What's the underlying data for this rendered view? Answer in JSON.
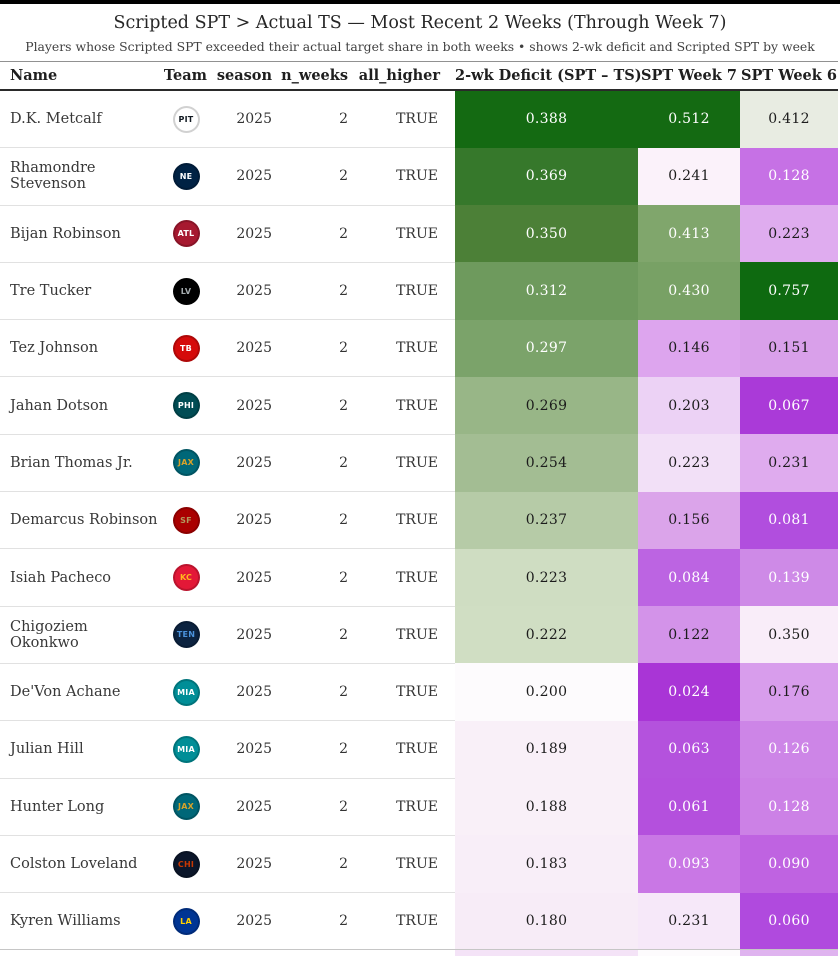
{
  "header": {
    "title": "Scripted SPT > Actual TS — Most Recent 2 Weeks (Through Week 7)",
    "subtitle": "Players whose Scripted SPT exceeded their actual target share in both weeks • shows 2-wk deficit and Scripted SPT by week"
  },
  "columns": [
    "Name",
    "Team",
    "season",
    "n_weeks",
    "all_higher",
    "2-wk Deficit (SPT – TS)",
    "SPT Week 7",
    "SPT Week 6"
  ],
  "rows": [
    {
      "name": "D.K. Metcalf",
      "team": {
        "abbr": "PIT",
        "bg": "#ffffff",
        "fg": "#101820"
      },
      "season": "2025",
      "n_weeks": "2",
      "all_higher": "TRUE",
      "deficit": {
        "v": "0.388",
        "bg": "#146a12",
        "fg": "#ffffff"
      },
      "wk7": {
        "v": "0.512",
        "bg": "#146a12",
        "fg": "#ffffff"
      },
      "wk6": {
        "v": "0.412",
        "bg": "#e8ece2",
        "fg": "#1c1c1c"
      }
    },
    {
      "name": "Rhamondre Stevenson",
      "team": {
        "abbr": "NE",
        "bg": "#002244",
        "fg": "#ffffff"
      },
      "season": "2025",
      "n_weeks": "2",
      "all_higher": "TRUE",
      "deficit": {
        "v": "0.369",
        "bg": "#36782b",
        "fg": "#ffffff"
      },
      "wk7": {
        "v": "0.241",
        "bg": "#fbf2fa",
        "fg": "#1c1c1c"
      },
      "wk6": {
        "v": "0.128",
        "bg": "#c671e5",
        "fg": "#ffffff"
      }
    },
    {
      "name": "Bijan Robinson",
      "team": {
        "abbr": "ATL",
        "bg": "#a71930",
        "fg": "#ffffff"
      },
      "season": "2025",
      "n_weeks": "2",
      "all_higher": "TRUE",
      "deficit": {
        "v": "0.350",
        "bg": "#4c8037",
        "fg": "#ffffff"
      },
      "wk7": {
        "v": "0.413",
        "bg": "#80a66c",
        "fg": "#ffffff"
      },
      "wk6": {
        "v": "0.223",
        "bg": "#dfacef",
        "fg": "#1c1c1c"
      }
    },
    {
      "name": "Tre Tucker",
      "team": {
        "abbr": "LV",
        "bg": "#000000",
        "fg": "#a5acaf"
      },
      "season": "2025",
      "n_weeks": "2",
      "all_higher": "TRUE",
      "deficit": {
        "v": "0.312",
        "bg": "#6e9a5d",
        "fg": "#ffffff"
      },
      "wk7": {
        "v": "0.430",
        "bg": "#78a165",
        "fg": "#ffffff"
      },
      "wk6": {
        "v": "0.757",
        "bg": "#0e6a10",
        "fg": "#ffffff"
      }
    },
    {
      "name": "Tez Johnson",
      "team": {
        "abbr": "TB",
        "bg": "#d50a0a",
        "fg": "#ffffff"
      },
      "season": "2025",
      "n_weeks": "2",
      "all_higher": "TRUE",
      "deficit": {
        "v": "0.297",
        "bg": "#7ba36a",
        "fg": "#ffffff"
      },
      "wk7": {
        "v": "0.146",
        "bg": "#dda5ee",
        "fg": "#1c1c1c"
      },
      "wk6": {
        "v": "0.151",
        "bg": "#d9a0ea",
        "fg": "#1c1c1c"
      }
    },
    {
      "name": "Jahan Dotson",
      "team": {
        "abbr": "PHI",
        "bg": "#004c54",
        "fg": "#ffffff"
      },
      "season": "2025",
      "n_weeks": "2",
      "all_higher": "TRUE",
      "deficit": {
        "v": "0.269",
        "bg": "#98b687",
        "fg": "#1c1c1c"
      },
      "wk7": {
        "v": "0.203",
        "bg": "#ecd2f5",
        "fg": "#1c1c1c"
      },
      "wk6": {
        "v": "0.067",
        "bg": "#aa3ad8",
        "fg": "#ffffff"
      }
    },
    {
      "name": "Brian Thomas Jr.",
      "team": {
        "abbr": "JAX",
        "bg": "#006778",
        "fg": "#d7a22a"
      },
      "season": "2025",
      "n_weeks": "2",
      "all_higher": "TRUE",
      "deficit": {
        "v": "0.254",
        "bg": "#a3bd93",
        "fg": "#1c1c1c"
      },
      "wk7": {
        "v": "0.223",
        "bg": "#f2e0f7",
        "fg": "#1c1c1c"
      },
      "wk6": {
        "v": "0.231",
        "bg": "#dfabee",
        "fg": "#1c1c1c"
      }
    },
    {
      "name": "Demarcus Robinson",
      "team": {
        "abbr": "SF",
        "bg": "#aa0000",
        "fg": "#b3995d"
      },
      "season": "2025",
      "n_weeks": "2",
      "all_higher": "TRUE",
      "deficit": {
        "v": "0.237",
        "bg": "#b6cba7",
        "fg": "#1c1c1c"
      },
      "wk7": {
        "v": "0.156",
        "bg": "#dba4ea",
        "fg": "#1c1c1c"
      },
      "wk6": {
        "v": "0.081",
        "bg": "#b14ede",
        "fg": "#ffffff"
      }
    },
    {
      "name": "Isiah Pacheco",
      "team": {
        "abbr": "KC",
        "bg": "#e31837",
        "fg": "#ffb81c"
      },
      "season": "2025",
      "n_weeks": "2",
      "all_higher": "TRUE",
      "deficit": {
        "v": "0.223",
        "bg": "#cfddc2",
        "fg": "#1c1c1c"
      },
      "wk7": {
        "v": "0.084",
        "bg": "#bc64e2",
        "fg": "#ffffff"
      },
      "wk6": {
        "v": "0.139",
        "bg": "#ce8ae7",
        "fg": "#ffffff"
      }
    },
    {
      "name": "Chigoziem Okonkwo",
      "team": {
        "abbr": "TEN",
        "bg": "#0c2340",
        "fg": "#4b92db"
      },
      "season": "2025",
      "n_weeks": "2",
      "all_higher": "TRUE",
      "deficit": {
        "v": "0.222",
        "bg": "#d0dec3",
        "fg": "#1c1c1c"
      },
      "wk7": {
        "v": "0.122",
        "bg": "#d393e9",
        "fg": "#1c1c1c"
      },
      "wk6": {
        "v": "0.350",
        "bg": "#f9edf9",
        "fg": "#1c1c1c"
      }
    },
    {
      "name": "De'Von Achane",
      "team": {
        "abbr": "MIA",
        "bg": "#008e97",
        "fg": "#ffffff"
      },
      "season": "2025",
      "n_weeks": "2",
      "all_higher": "TRUE",
      "deficit": {
        "v": "0.200",
        "bg": "#fdfbfd",
        "fg": "#1c1c1c"
      },
      "wk7": {
        "v": "0.024",
        "bg": "#a935d6",
        "fg": "#ffffff"
      },
      "wk6": {
        "v": "0.176",
        "bg": "#d89dec",
        "fg": "#1c1c1c"
      }
    },
    {
      "name": "Julian Hill",
      "team": {
        "abbr": "MIA",
        "bg": "#008e97",
        "fg": "#ffffff"
      },
      "season": "2025",
      "n_weeks": "2",
      "all_higher": "TRUE",
      "deficit": {
        "v": "0.189",
        "bg": "#f9f0f8",
        "fg": "#1c1c1c"
      },
      "wk7": {
        "v": "0.063",
        "bg": "#b452dd",
        "fg": "#ffffff"
      },
      "wk6": {
        "v": "0.126",
        "bg": "#cd85e7",
        "fg": "#ffffff"
      }
    },
    {
      "name": "Hunter Long",
      "team": {
        "abbr": "JAX",
        "bg": "#006778",
        "fg": "#d7a22a"
      },
      "season": "2025",
      "n_weeks": "2",
      "all_higher": "TRUE",
      "deficit": {
        "v": "0.188",
        "bg": "#f9f0f8",
        "fg": "#1c1c1c"
      },
      "wk7": {
        "v": "0.061",
        "bg": "#b450dd",
        "fg": "#ffffff"
      },
      "wk6": {
        "v": "0.128",
        "bg": "#cc81e6",
        "fg": "#ffffff"
      }
    },
    {
      "name": "Colston Loveland",
      "team": {
        "abbr": "CHI",
        "bg": "#0b162a",
        "fg": "#c83803"
      },
      "season": "2025",
      "n_weeks": "2",
      "all_higher": "TRUE",
      "deficit": {
        "v": "0.183",
        "bg": "#f8eef8",
        "fg": "#1c1c1c"
      },
      "wk7": {
        "v": "0.093",
        "bg": "#c977e5",
        "fg": "#ffffff"
      },
      "wk6": {
        "v": "0.090",
        "bg": "#bf63e1",
        "fg": "#ffffff"
      }
    },
    {
      "name": "Kyren Williams",
      "team": {
        "abbr": "LA",
        "bg": "#003594",
        "fg": "#ffd100"
      },
      "season": "2025",
      "n_weeks": "2",
      "all_higher": "TRUE",
      "deficit": {
        "v": "0.180",
        "bg": "#f7ecf7",
        "fg": "#1c1c1c"
      },
      "wk7": {
        "v": "0.231",
        "bg": "#f6e8f9",
        "fg": "#1c1c1c"
      },
      "wk6": {
        "v": "0.060",
        "bg": "#b04ade",
        "fg": "#ffffff"
      }
    }
  ],
  "partial_row": {
    "deficit_bg": "#f4e3f7",
    "wk7_bg": "#fdfbfd",
    "wk6_bg": "#dfb3ef"
  },
  "chart_data": {
    "type": "table",
    "title": "Scripted SPT > Actual TS — Most Recent 2 Weeks (Through Week 7)",
    "subtitle": "Players whose Scripted SPT exceeded their actual target share in both weeks • shows 2-wk deficit and Scripted SPT by week",
    "columns": [
      "Name",
      "Team",
      "season",
      "n_weeks",
      "all_higher",
      "2-wk Deficit (SPT – TS)",
      "SPT Week 7",
      "SPT Week 6"
    ],
    "rows": [
      [
        "D.K. Metcalf",
        "PIT",
        2025,
        2,
        true,
        0.388,
        0.512,
        0.412
      ],
      [
        "Rhamondre Stevenson",
        "NE",
        2025,
        2,
        true,
        0.369,
        0.241,
        0.128
      ],
      [
        "Bijan Robinson",
        "ATL",
        2025,
        2,
        true,
        0.35,
        0.413,
        0.223
      ],
      [
        "Tre Tucker",
        "LV",
        2025,
        2,
        true,
        0.312,
        0.43,
        0.757
      ],
      [
        "Tez Johnson",
        "TB",
        2025,
        2,
        true,
        0.297,
        0.146,
        0.151
      ],
      [
        "Jahan Dotson",
        "PHI",
        2025,
        2,
        true,
        0.269,
        0.203,
        0.067
      ],
      [
        "Brian Thomas Jr.",
        "JAX",
        2025,
        2,
        true,
        0.254,
        0.223,
        0.231
      ],
      [
        "Demarcus Robinson",
        "SF",
        2025,
        2,
        true,
        0.237,
        0.156,
        0.081
      ],
      [
        "Isiah Pacheco",
        "KC",
        2025,
        2,
        true,
        0.223,
        0.084,
        0.139
      ],
      [
        "Chigoziem Okonkwo",
        "TEN",
        2025,
        2,
        true,
        0.222,
        0.122,
        0.35
      ],
      [
        "De'Von Achane",
        "MIA",
        2025,
        2,
        true,
        0.2,
        0.024,
        0.176
      ],
      [
        "Julian Hill",
        "MIA",
        2025,
        2,
        true,
        0.189,
        0.063,
        0.126
      ],
      [
        "Hunter Long",
        "JAX",
        2025,
        2,
        true,
        0.188,
        0.061,
        0.128
      ],
      [
        "Colston Loveland",
        "CHI",
        2025,
        2,
        true,
        0.183,
        0.093,
        0.09
      ],
      [
        "Kyren Williams",
        "LA",
        2025,
        2,
        true,
        0.18,
        0.231,
        0.06
      ]
    ],
    "heatmap_columns": [
      "2-wk Deficit (SPT – TS)",
      "SPT Week 7",
      "SPT Week 6"
    ],
    "color_scale": {
      "low": "#a935d6",
      "mid": "#fdfbfd",
      "high": "#0e6a10",
      "note": "purple-white-green diverging, normalized per column"
    }
  }
}
